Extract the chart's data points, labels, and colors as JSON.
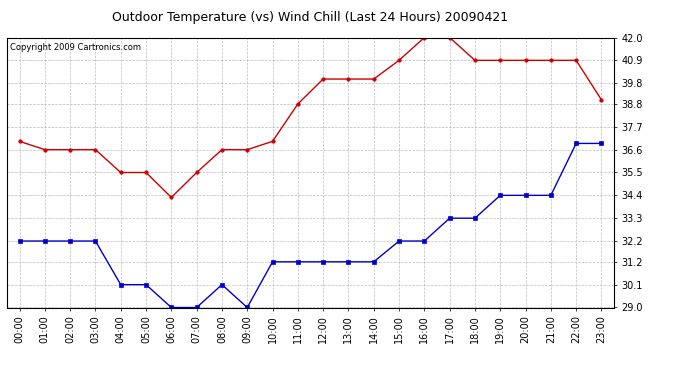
{
  "title": "Outdoor Temperature (vs) Wind Chill (Last 24 Hours) 20090421",
  "copyright": "Copyright 2009 Cartronics.com",
  "hours": [
    "00:00",
    "01:00",
    "02:00",
    "03:00",
    "04:00",
    "05:00",
    "06:00",
    "07:00",
    "08:00",
    "09:00",
    "10:00",
    "11:00",
    "12:00",
    "13:00",
    "14:00",
    "15:00",
    "16:00",
    "17:00",
    "18:00",
    "19:00",
    "20:00",
    "21:00",
    "22:00",
    "23:00"
  ],
  "temp": [
    37.0,
    36.6,
    36.6,
    36.6,
    35.5,
    35.5,
    34.3,
    35.5,
    36.6,
    36.6,
    37.0,
    38.8,
    40.0,
    40.0,
    40.0,
    40.9,
    42.0,
    42.0,
    40.9,
    40.9,
    40.9,
    40.9,
    40.9,
    39.0
  ],
  "wind_chill": [
    32.2,
    32.2,
    32.2,
    32.2,
    30.1,
    30.1,
    29.0,
    29.0,
    30.1,
    29.0,
    31.2,
    31.2,
    31.2,
    31.2,
    31.2,
    32.2,
    32.2,
    33.3,
    33.3,
    34.4,
    34.4,
    34.4,
    36.9,
    36.9
  ],
  "temp_color": "#cc0000",
  "wind_chill_color": "#0000cc",
  "background_color": "#ffffff",
  "grid_color": "#bbbbbb",
  "ylim_min": 29.0,
  "ylim_max": 42.0,
  "yticks": [
    29.0,
    30.1,
    31.2,
    32.2,
    33.3,
    34.4,
    35.5,
    36.6,
    37.7,
    38.8,
    39.8,
    40.9,
    42.0
  ],
  "title_fontsize": 9,
  "copyright_fontsize": 6,
  "tick_fontsize": 7
}
